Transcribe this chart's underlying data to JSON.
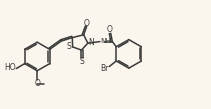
{
  "bg_color": "#faf6ee",
  "bond_color": "#3a3a3a",
  "lw": 1.1,
  "figw": 2.11,
  "figh": 1.09,
  "dpi": 100,
  "xlim": [
    0,
    10.5
  ],
  "ylim": [
    0,
    5.5
  ]
}
